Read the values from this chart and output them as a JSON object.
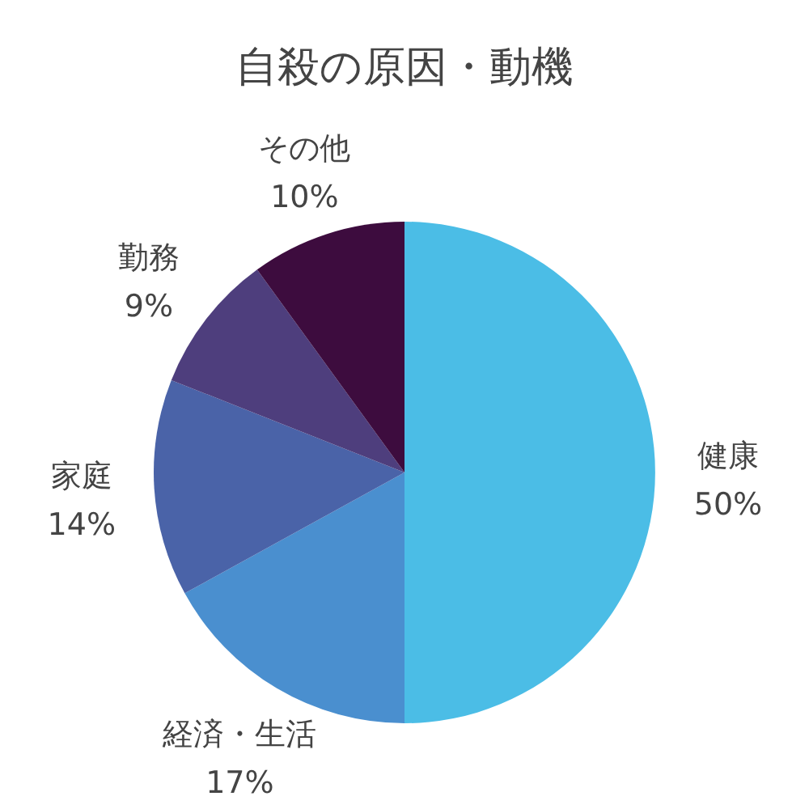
{
  "chart_data": {
    "type": "pie",
    "title": "自殺の原因・動機",
    "categories": [
      "健康",
      "経済・生活",
      "家庭",
      "勤務",
      "その他"
    ],
    "values": [
      50,
      17,
      14,
      9,
      10
    ],
    "value_labels": [
      "50%",
      "17%",
      "14%",
      "9%",
      "10%"
    ],
    "colors": [
      "#4bbde6",
      "#4a8fcf",
      "#4a63a8",
      "#4e3e7d",
      "#3d0c3e"
    ],
    "legend": false
  }
}
